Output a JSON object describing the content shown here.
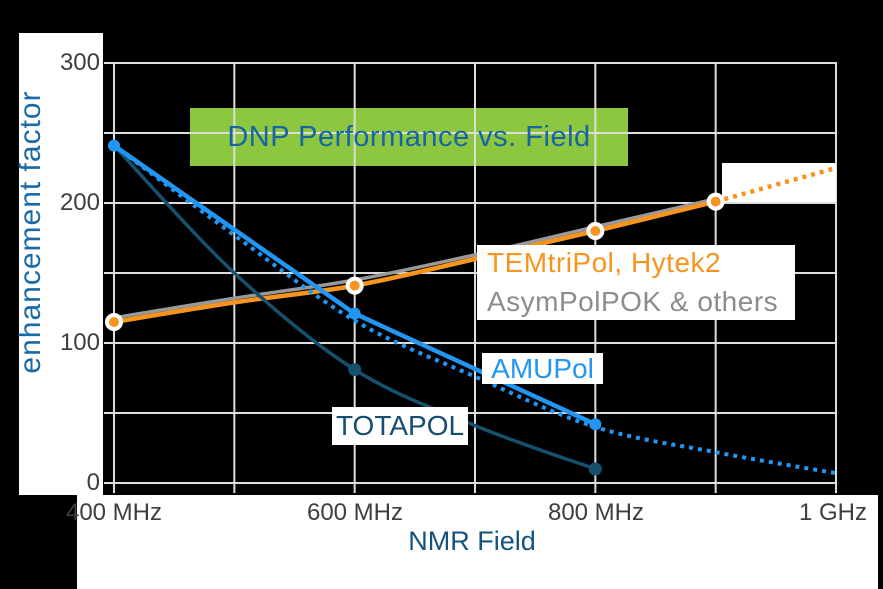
{
  "title_banner": {
    "text": "DNP Performance vs. Field",
    "bg_color": "#8dc63f",
    "text_color": "#1565a5"
  },
  "axis": {
    "y_label": "enhancement factor",
    "x_label": "NMR Field",
    "tick_color": "#3e3e3e",
    "y_ticks": [
      {
        "label": "300",
        "value": 300
      },
      {
        "label": "200",
        "value": 200
      },
      {
        "label": "100",
        "value": 100
      },
      {
        "label": "0",
        "value": 0
      }
    ],
    "x_ticks": [
      {
        "label": "400 MHz",
        "mhz": 400
      },
      {
        "label": "600 MHz",
        "mhz": 600
      },
      {
        "label": "800 MHz",
        "mhz": 800
      },
      {
        "label": "1 GHz",
        "mhz": 1000
      }
    ]
  },
  "series_labels": {
    "temtripol": {
      "text": "TEMtriPol, Hytek2",
      "color": "#f7941d"
    },
    "asympol": {
      "text": "AsymPolPOK & others",
      "color": "#8c8c8c"
    },
    "amupol": {
      "text": "AMUPol",
      "color": "#2196f3"
    },
    "totapol": {
      "text": "TOTAPOL",
      "color": "#174e70"
    }
  },
  "chart_data": {
    "type": "line",
    "title": "DNP Performance vs. Field",
    "xlabel": "NMR Field",
    "ylabel": "enhancement factor",
    "x_unit": "MHz",
    "xlim": [
      400,
      1000
    ],
    "ylim": [
      0,
      300
    ],
    "grid": true,
    "grid_color": "#deddda",
    "x_gridlines_mhz": [
      400,
      500,
      600,
      700,
      800,
      900,
      1000
    ],
    "y_gridlines": [
      0,
      50,
      100,
      150,
      200,
      250,
      300
    ],
    "series": [
      {
        "name": "AsymPolPOK & others",
        "color": "#999999",
        "width": 3.5,
        "smooth": true,
        "x": [
          400,
          500,
          600,
          700,
          800,
          900
        ],
        "values": [
          118,
          132,
          145,
          163,
          183,
          203
        ],
        "markers_x": []
      },
      {
        "name": "TEMtriPol, Hytek2",
        "color": "#f7941d",
        "width": 4.5,
        "smooth": true,
        "x": [
          400,
          500,
          600,
          700,
          800,
          900
        ],
        "values": [
          115,
          129,
          141,
          160,
          180,
          201
        ],
        "markers_x": [
          400,
          600,
          800,
          900
        ],
        "marker": {
          "r": 7,
          "stroke": "#ffffff",
          "stroke_width": 4
        },
        "extrapolation": {
          "style": "dotted",
          "width": 4.5,
          "x": [
            900,
            950,
            1000
          ],
          "values": [
            201,
            213,
            225
          ]
        }
      },
      {
        "name": "TOTAPOL",
        "color": "#17506f",
        "width": 3.5,
        "smooth": true,
        "x": [
          400,
          500,
          600,
          700,
          800
        ],
        "values": [
          241,
          150,
          81,
          41,
          10
        ],
        "markers_x": [
          600,
          800
        ],
        "marker": {
          "r": 6.5
        }
      },
      {
        "name": "AMUPol",
        "color": "#2196f3",
        "width": 4.5,
        "smooth": false,
        "x": [
          400,
          600,
          800
        ],
        "values": [
          241,
          121,
          42
        ],
        "markers_x": [
          400,
          600,
          800
        ],
        "marker": {
          "r": 6
        },
        "extrapolation": {
          "style": "dotted",
          "width": 4,
          "smooth": true,
          "x": [
            400,
            500,
            600,
            700,
            800,
            900,
            1000
          ],
          "values": [
            241,
            177,
            116,
            76,
            40,
            22,
            7
          ]
        }
      }
    ],
    "annotation_boxes": [
      {
        "name": "extrapolation-highlight",
        "x_mhz": [
          722,
          836
        ],
        "fill": "#ffffff"
      }
    ]
  }
}
